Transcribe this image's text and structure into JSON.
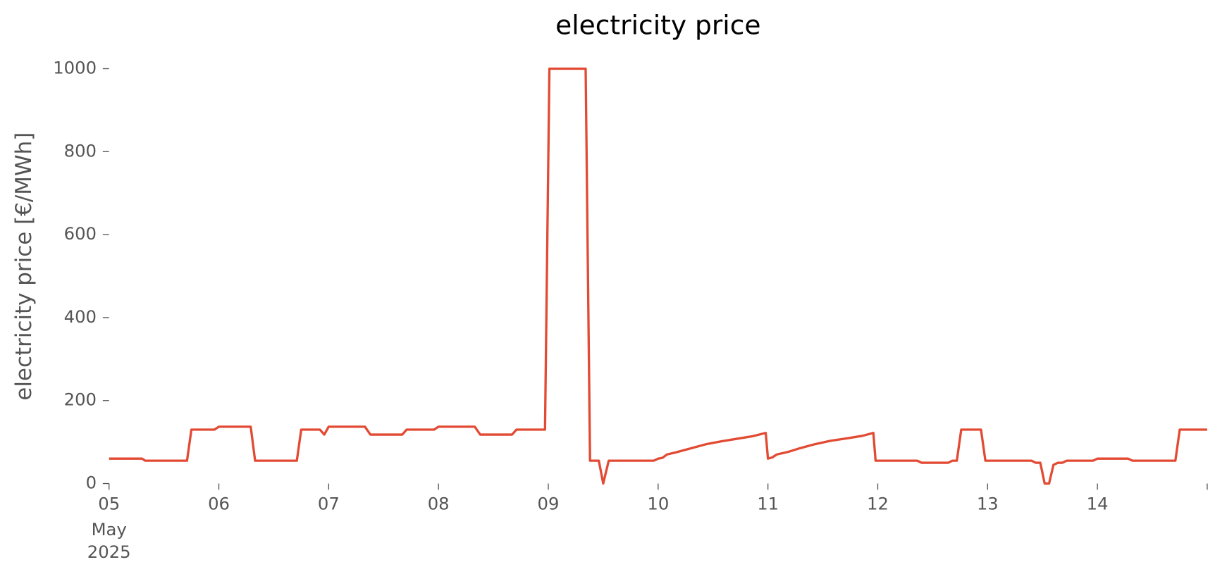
{
  "chart_data": {
    "type": "line",
    "title": "electricity price",
    "ylabel": "electricity price [€/MWh]",
    "x": [
      5.0,
      5.3,
      5.33,
      5.71,
      5.75,
      5.96,
      6.0,
      6.29,
      6.33,
      6.71,
      6.75,
      6.92,
      6.96,
      7.0,
      7.33,
      7.38,
      7.67,
      7.71,
      7.96,
      8.0,
      8.33,
      8.38,
      8.67,
      8.71,
      8.97,
      9.01,
      9.34,
      9.38,
      9.46,
      9.5,
      9.55,
      9.96,
      10.0,
      10.04,
      10.08,
      10.16,
      10.3,
      10.44,
      10.58,
      10.72,
      10.86,
      10.98,
      11.0,
      11.04,
      11.08,
      11.18,
      11.29,
      11.43,
      11.57,
      11.72,
      11.86,
      11.96,
      11.98,
      12.36,
      12.4,
      12.64,
      12.68,
      12.72,
      12.76,
      12.94,
      12.98,
      13.4,
      13.44,
      13.48,
      13.52,
      13.56,
      13.6,
      13.64,
      13.68,
      13.72,
      13.96,
      14.0,
      14.28,
      14.32,
      14.71,
      14.75,
      15.0
    ],
    "values": [
      60,
      60,
      55,
      55,
      130,
      130,
      137,
      137,
      55,
      55,
      130,
      130,
      118,
      137,
      137,
      118,
      118,
      130,
      130,
      137,
      137,
      118,
      118,
      130,
      130,
      1000,
      1000,
      55,
      55,
      0,
      55,
      55,
      60,
      62,
      70,
      75,
      85,
      95,
      102,
      108,
      114,
      122,
      60,
      63,
      70,
      76,
      85,
      95,
      103,
      109,
      115,
      122,
      55,
      55,
      50,
      50,
      55,
      55,
      130,
      130,
      55,
      55,
      50,
      50,
      0,
      0,
      45,
      50,
      50,
      55,
      55,
      60,
      60,
      55,
      55,
      130,
      130
    ],
    "color": "#e24a33",
    "xlim": [
      5,
      15
    ],
    "xticks": [
      {
        "value": 5,
        "label": "05"
      },
      {
        "value": 6,
        "label": "06"
      },
      {
        "value": 7,
        "label": "07"
      },
      {
        "value": 8,
        "label": "08"
      },
      {
        "value": 9,
        "label": "09"
      },
      {
        "value": 10,
        "label": "10"
      },
      {
        "value": 11,
        "label": "11"
      },
      {
        "value": 12,
        "label": "12"
      },
      {
        "value": 13,
        "label": "13"
      },
      {
        "value": 14,
        "label": "14"
      },
      {
        "value": 15,
        "label": null
      }
    ],
    "x_date_label": [
      "May",
      "2025"
    ],
    "ylim": [
      0,
      1000
    ],
    "yticks": [
      0,
      200,
      400,
      600,
      800,
      1000
    ]
  }
}
